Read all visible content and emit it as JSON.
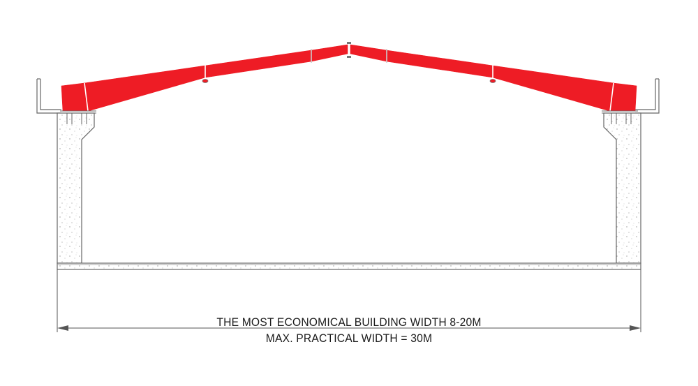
{
  "captions": {
    "line1": "THE MOST ECONOMICAL BUILDING WIDTH 8-20M",
    "line2": "MAX. PRACTICAL WIDTH = 30M"
  },
  "colors": {
    "rafter": "#ee1c25",
    "line": "#555555",
    "concrete_fill": "#ffffff",
    "speckle": "#9a9a9a",
    "background": "#ffffff"
  }
}
